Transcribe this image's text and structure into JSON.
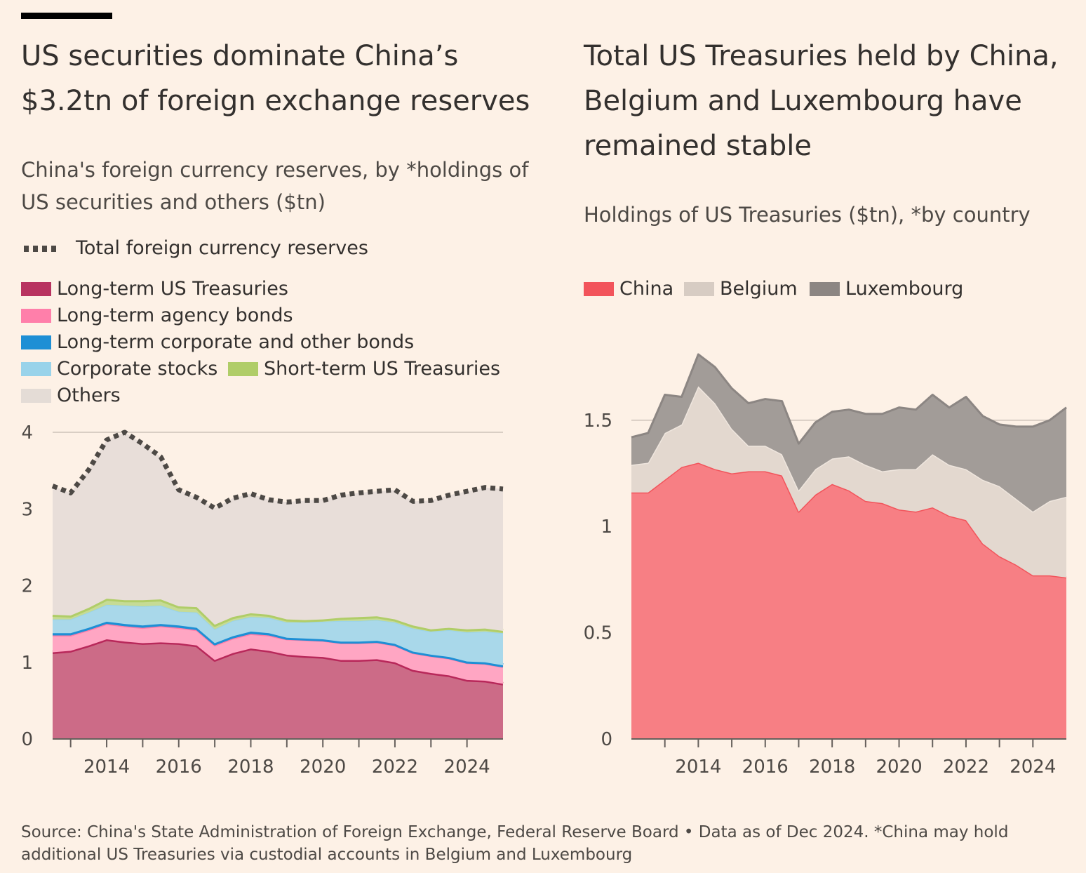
{
  "left": {
    "title": "US securities dominate China’s $3.2tn of foreign exchange reserves",
    "subtitle": "China's foreign currency reserves, by *holdings of US securities and others ($tn)",
    "legend_total": "Total foreign currency reserves",
    "legend": [
      {
        "label": "Long-term US Treasuries",
        "color": "#C4284E"
      },
      {
        "label": "Long-term agency bonds",
        "color": "#FF7FAA"
      },
      {
        "label": "Long-term corporate and other bonds",
        "color": "#1E8FD5"
      },
      {
        "label": "Corporate stocks",
        "color": "#99D3EA"
      },
      {
        "label": "Short-term US Treasuries",
        "color": "#B0CD68"
      },
      {
        "label": "Others",
        "color": "#E4DCD6"
      }
    ]
  },
  "right": {
    "title": "Total US Treasuries held by China, Belgium and Luxembourg have remained stable",
    "subtitle": "Holdings of US Treasuries ($tn), *by country",
    "legend": [
      {
        "label": "China",
        "color": "#F2545B"
      },
      {
        "label": "Belgium",
        "color": "#D7CCC3"
      },
      {
        "label": "Luxembourg",
        "color": "#8C8683"
      }
    ]
  },
  "source": "Source: China's State Administration of Foreign Exchange, Federal Reserve Board • Data as of Dec 2024. *China may hold additional US Treasuries via custodial accounts in Belgium and Luxembourg",
  "chart_data": [
    {
      "type": "area",
      "stacked": true,
      "x": [
        2012.5,
        2013.0,
        2013.5,
        2014.0,
        2014.5,
        2015.0,
        2015.5,
        2016.0,
        2016.5,
        2017.0,
        2017.5,
        2018.0,
        2018.5,
        2019.0,
        2019.5,
        2020.0,
        2020.5,
        2021.0,
        2021.5,
        2022.0,
        2022.5,
        2023.0,
        2023.5,
        2024.0,
        2024.5,
        2025.0
      ],
      "xticks": [
        "2014",
        "2016",
        "2018",
        "2020",
        "2022",
        "2024"
      ],
      "ylim": [
        0,
        4
      ],
      "yticks": [
        "0",
        "1",
        "2",
        "3",
        "4"
      ],
      "grid": true,
      "series": [
        {
          "name": "Long-term US Treasuries",
          "values": [
            1.13,
            1.15,
            1.22,
            1.3,
            1.27,
            1.25,
            1.26,
            1.25,
            1.22,
            1.03,
            1.12,
            1.18,
            1.15,
            1.1,
            1.08,
            1.07,
            1.03,
            1.03,
            1.04,
            1.0,
            0.9,
            0.86,
            0.83,
            0.77,
            0.76,
            0.72
          ]
        },
        {
          "name": "Long-term agency bonds",
          "values": [
            0.22,
            0.2,
            0.2,
            0.2,
            0.2,
            0.2,
            0.21,
            0.2,
            0.2,
            0.19,
            0.19,
            0.19,
            0.2,
            0.2,
            0.21,
            0.21,
            0.22,
            0.22,
            0.22,
            0.22,
            0.22,
            0.22,
            0.22,
            0.22,
            0.22,
            0.22
          ]
        },
        {
          "name": "Long-term corporate and other bonds",
          "values": [
            0.03,
            0.03,
            0.03,
            0.03,
            0.03,
            0.03,
            0.03,
            0.03,
            0.03,
            0.03,
            0.03,
            0.03,
            0.03,
            0.02,
            0.02,
            0.02,
            0.02,
            0.02,
            0.02,
            0.02,
            0.02,
            0.02,
            0.02,
            0.02,
            0.02,
            0.02
          ]
        },
        {
          "name": "Corporate stocks",
          "values": [
            0.18,
            0.18,
            0.2,
            0.22,
            0.24,
            0.25,
            0.24,
            0.18,
            0.2,
            0.18,
            0.2,
            0.19,
            0.2,
            0.2,
            0.21,
            0.23,
            0.27,
            0.27,
            0.27,
            0.28,
            0.3,
            0.3,
            0.35,
            0.38,
            0.4,
            0.42
          ]
        },
        {
          "name": "Short-term US Treasuries",
          "values": [
            0.06,
            0.05,
            0.06,
            0.08,
            0.07,
            0.08,
            0.08,
            0.07,
            0.07,
            0.06,
            0.05,
            0.05,
            0.04,
            0.04,
            0.03,
            0.03,
            0.04,
            0.05,
            0.05,
            0.04,
            0.04,
            0.03,
            0.03,
            0.04,
            0.04,
            0.03
          ]
        },
        {
          "name": "Others",
          "values": [
            1.68,
            1.6,
            1.8,
            2.07,
            2.19,
            2.04,
            1.86,
            1.52,
            1.43,
            1.52,
            1.55,
            1.56,
            1.5,
            1.53,
            1.56,
            1.57,
            1.6,
            1.62,
            1.63,
            1.69,
            1.62,
            1.68,
            1.73,
            1.8,
            1.84,
            1.85
          ]
        }
      ],
      "total": {
        "name": "Total foreign currency reserves",
        "values": [
          3.3,
          3.21,
          3.51,
          3.9,
          4.0,
          3.85,
          3.68,
          3.25,
          3.15,
          3.01,
          3.14,
          3.2,
          3.12,
          3.09,
          3.11,
          3.11,
          3.18,
          3.21,
          3.23,
          3.25,
          3.1,
          3.11,
          3.18,
          3.23,
          3.28,
          3.26
        ]
      }
    },
    {
      "type": "area",
      "stacked": true,
      "x": [
        2012.0,
        2012.5,
        2013.0,
        2013.5,
        2014.0,
        2014.5,
        2015.0,
        2015.5,
        2016.0,
        2016.5,
        2017.0,
        2017.5,
        2018.0,
        2018.5,
        2019.0,
        2019.5,
        2020.0,
        2020.5,
        2021.0,
        2021.5,
        2022.0,
        2022.5,
        2023.0,
        2023.5,
        2024.0,
        2024.5,
        2025.0
      ],
      "xticks": [
        "2014",
        "2016",
        "2018",
        "2020",
        "2022",
        "2024"
      ],
      "ylim": [
        0,
        1.8
      ],
      "yticks": [
        "0",
        "0.5",
        "1",
        "1.5"
      ],
      "grid": true,
      "series": [
        {
          "name": "China",
          "values": [
            1.16,
            1.16,
            1.22,
            1.28,
            1.3,
            1.27,
            1.25,
            1.26,
            1.26,
            1.24,
            1.07,
            1.15,
            1.2,
            1.17,
            1.12,
            1.11,
            1.08,
            1.07,
            1.09,
            1.05,
            1.03,
            0.92,
            0.86,
            0.82,
            0.77,
            0.77,
            0.76
          ]
        },
        {
          "name": "Belgium",
          "values": [
            0.13,
            0.14,
            0.22,
            0.2,
            0.36,
            0.31,
            0.21,
            0.12,
            0.12,
            0.1,
            0.1,
            0.12,
            0.12,
            0.16,
            0.17,
            0.15,
            0.19,
            0.2,
            0.25,
            0.24,
            0.24,
            0.3,
            0.33,
            0.31,
            0.3,
            0.35,
            0.38
          ]
        },
        {
          "name": "Luxembourg",
          "values": [
            0.13,
            0.14,
            0.18,
            0.13,
            0.15,
            0.17,
            0.19,
            0.2,
            0.22,
            0.25,
            0.22,
            0.22,
            0.22,
            0.22,
            0.24,
            0.27,
            0.29,
            0.28,
            0.28,
            0.27,
            0.34,
            0.3,
            0.29,
            0.34,
            0.4,
            0.38,
            0.42
          ]
        }
      ]
    }
  ]
}
